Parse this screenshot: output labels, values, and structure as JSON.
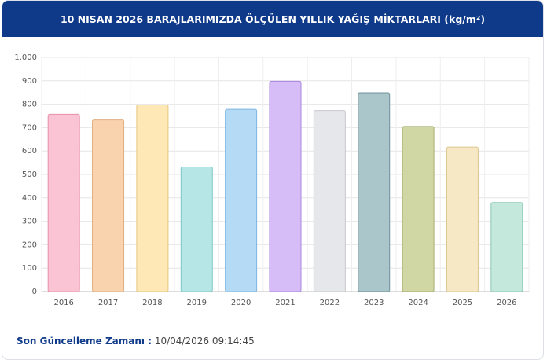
{
  "chart_data": {
    "type": "bar",
    "title": "10 NISAN 2026 BARAJLARIMIZDA ÖLÇÜLEN YILLIK YAĞIŞ MİKTARLARI (kg/m²)",
    "categories": [
      "2016",
      "2017",
      "2018",
      "2019",
      "2020",
      "2021",
      "2022",
      "2023",
      "2024",
      "2025",
      "2026"
    ],
    "values": [
      757,
      733,
      797,
      532,
      778,
      898,
      773,
      849,
      705,
      617,
      380
    ],
    "colors": [
      "#fbc4d4",
      "#f9d3ae",
      "#fde8b6",
      "#b6e7e6",
      "#b4daf6",
      "#d6bdf7",
      "#e6e7ea",
      "#aac6ca",
      "#d0d6a4",
      "#f6e8c4",
      "#c4e8dc"
    ],
    "border_colors": [
      "#e890aa",
      "#dfae80",
      "#e7c77a",
      "#7cc7c6",
      "#7fb6e0",
      "#a987df",
      "#c7c8cd",
      "#6f9398",
      "#a7ae6e",
      "#dcc68f",
      "#8ccab6"
    ],
    "ylim": [
      0,
      1000
    ],
    "yticks": [
      0,
      100,
      200,
      300,
      400,
      500,
      600,
      700,
      800,
      900,
      {
        "value": 1000,
        "label": "1.000"
      }
    ],
    "grid": true
  },
  "footer": {
    "label": "Son Güncelleme Zamanı :",
    "value": "10/04/2026 09:14:45"
  }
}
